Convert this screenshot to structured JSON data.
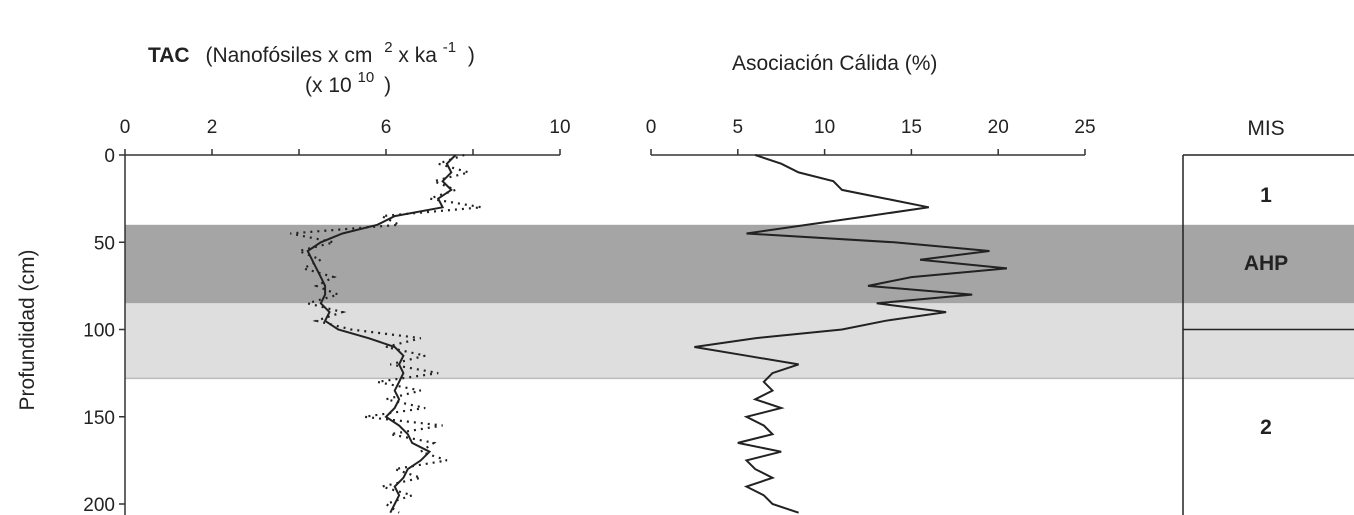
{
  "chart_data": [
    {
      "type": "line",
      "title_bold": "TAC",
      "title_rest": "(Nanofósiles x cm",
      "title_sup1": "2",
      "title_mid": "x ka",
      "title_sup2": "-1",
      "title_close": ")",
      "title_line2_open": "(x 10",
      "title_line2_sup": "10",
      "title_line2_close": ")",
      "ylabel": "Profundidad (cm)",
      "xlim": [
        0,
        10
      ],
      "ylim": [
        200,
        0
      ],
      "x_ticks": [
        "0",
        "2",
        "6",
        "10"
      ],
      "x_tick_values": [
        0,
        2,
        6,
        10
      ],
      "y_ticks": [
        "0",
        "50",
        "100",
        "150",
        "200"
      ],
      "y_tick_values": [
        0,
        50,
        100,
        150,
        200
      ],
      "series": [
        {
          "style": "solid",
          "depth": [
            0,
            5,
            10,
            15,
            20,
            25,
            30,
            35,
            40,
            45,
            50,
            55,
            60,
            65,
            70,
            75,
            80,
            85,
            90,
            95,
            100,
            105,
            110,
            115,
            120,
            125,
            130,
            135,
            140,
            145,
            150,
            155,
            160,
            165,
            170,
            175,
            180,
            185,
            190,
            195,
            200,
            205
          ],
          "values": [
            7.6,
            7.4,
            7.5,
            7.3,
            7.5,
            7.2,
            7.3,
            6.2,
            5.8,
            5.0,
            4.5,
            4.2,
            4.3,
            4.4,
            4.5,
            4.6,
            4.6,
            4.5,
            4.7,
            4.6,
            4.9,
            5.6,
            6.2,
            6.4,
            6.3,
            6.4,
            6.3,
            6.2,
            6.3,
            6.2,
            6.0,
            6.3,
            6.5,
            6.6,
            7.0,
            6.8,
            6.5,
            6.4,
            6.2,
            6.3,
            6.2,
            6.1
          ]
        },
        {
          "style": "dotted",
          "depth": [
            0,
            5,
            10,
            15,
            20,
            25,
            30,
            35,
            40,
            45,
            50,
            55,
            60,
            65,
            70,
            75,
            80,
            85,
            90,
            95,
            100,
            105,
            110,
            115,
            120,
            125,
            130,
            135,
            140,
            145,
            150,
            155,
            160,
            165,
            170,
            175,
            180,
            185,
            190,
            195,
            200,
            205
          ],
          "values": [
            7.8,
            7.2,
            7.9,
            7.1,
            7.6,
            7.0,
            8.2,
            5.9,
            6.3,
            3.8,
            4.8,
            4.0,
            4.5,
            4.1,
            4.8,
            4.4,
            4.9,
            4.2,
            5.0,
            4.4,
            5.2,
            6.8,
            6.0,
            6.9,
            6.1,
            7.2,
            5.8,
            6.8,
            6.0,
            6.9,
            5.5,
            7.3,
            6.1,
            7.1,
            6.8,
            7.4,
            6.2,
            6.8,
            5.9,
            6.6,
            6.0,
            6.3
          ]
        }
      ]
    },
    {
      "type": "line",
      "title": "Asociación Cálida (%)",
      "xlim": [
        0,
        25
      ],
      "ylim": [
        200,
        0
      ],
      "x_ticks": [
        "0",
        "5",
        "10",
        "15",
        "20",
        "25"
      ],
      "x_tick_values": [
        0,
        5,
        10,
        15,
        20,
        25
      ],
      "series": [
        {
          "style": "solid",
          "depth": [
            0,
            5,
            10,
            15,
            20,
            25,
            30,
            35,
            40,
            45,
            50,
            55,
            60,
            65,
            70,
            75,
            80,
            85,
            90,
            95,
            100,
            105,
            110,
            115,
            120,
            125,
            130,
            135,
            140,
            145,
            150,
            155,
            160,
            165,
            170,
            175,
            180,
            185,
            190,
            195,
            200,
            205
          ],
          "values": [
            6.0,
            7.5,
            8.5,
            10.5,
            11.0,
            13.5,
            16.0,
            12.5,
            9.0,
            5.5,
            14.0,
            19.5,
            15.5,
            20.5,
            15.0,
            12.5,
            18.5,
            13.0,
            17.0,
            13.5,
            11.0,
            6.0,
            2.5,
            5.5,
            8.5,
            7.0,
            6.5,
            7.0,
            6.0,
            7.5,
            5.5,
            6.5,
            7.0,
            5.0,
            7.5,
            5.5,
            6.0,
            7.0,
            5.5,
            6.5,
            7.0,
            8.5
          ]
        }
      ]
    },
    {
      "type": "table",
      "title": "MIS",
      "zones": [
        {
          "label": "1",
          "from": 0,
          "to": 40
        },
        {
          "label": "AHP",
          "from": 40,
          "to": 85
        },
        {
          "label": "2",
          "from": 100,
          "to": 210
        }
      ],
      "boundary_depth": 100
    }
  ],
  "bands": [
    {
      "from": 40,
      "to": 85,
      "color": "#a5a5a5"
    },
    {
      "from": 85,
      "to": 128,
      "color": "#dedede"
    }
  ],
  "colors": {
    "line": "#222222",
    "axis": "#333333"
  }
}
